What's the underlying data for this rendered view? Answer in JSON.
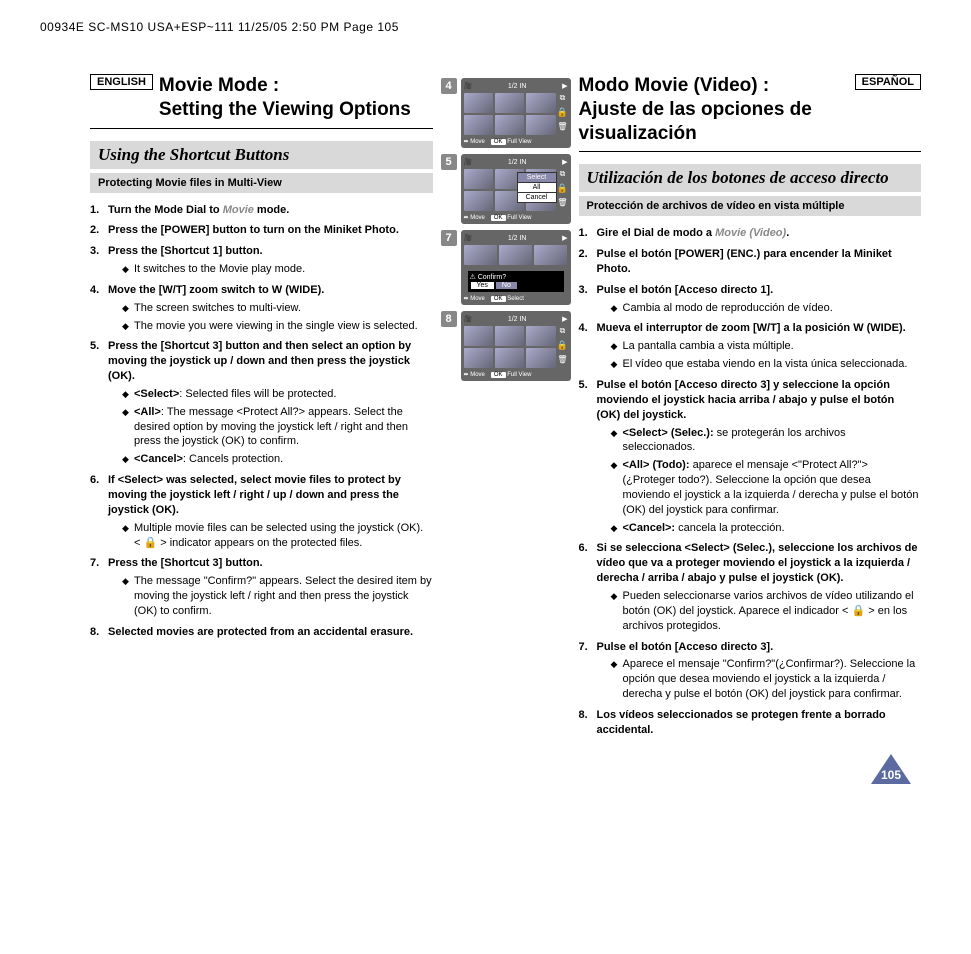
{
  "slug": "00934E SC-MS10 USA+ESP~111  11/25/05 2:50 PM  Page 105",
  "page_number": "105",
  "english": {
    "lang_tag": "ENGLISH",
    "title_line1": "Movie Mode :",
    "title_line2": "Setting the Viewing Options",
    "section": "Using the Shortcut Buttons",
    "subsection": "Protecting Movie files in Multi-View",
    "steps": [
      {
        "num": "1",
        "head": "Turn the Mode Dial to ",
        "mode": "Movie",
        "tail": " mode.",
        "subs": []
      },
      {
        "num": "2",
        "head": "Press the [POWER] button to turn on the Miniket Photo.",
        "subs": []
      },
      {
        "num": "3",
        "head": "Press the [Shortcut 1] button.",
        "subs": [
          {
            "text": "It switches to the Movie play mode."
          }
        ]
      },
      {
        "num": "4",
        "head": "Move the [W/T] zoom switch to W (WIDE).",
        "subs": [
          {
            "text": "The screen switches to multi-view."
          },
          {
            "text": "The movie you were viewing in the single view is selected."
          }
        ]
      },
      {
        "num": "5",
        "head": "Press the [Shortcut 3] button and then select an option by moving the joystick up / down and then press the joystick (OK).",
        "subs": [
          {
            "opt": "<Select>",
            "text": ": Selected files will be protected."
          },
          {
            "opt": "<All>",
            "text": ": The message <Protect All?> appears. Select the desired option by moving the joystick left / right and then press the joystick (OK) to confirm."
          },
          {
            "opt": "<Cancel>",
            "text": ": Cancels protection."
          }
        ]
      },
      {
        "num": "6",
        "head": "If <Select> was selected, select movie files to protect by moving the joystick left / right / up / down and press the joystick (OK).",
        "subs": [
          {
            "text": "Multiple movie files can be selected using the joystick (OK). < 🔒 > indicator appears on the protected files."
          }
        ]
      },
      {
        "num": "7",
        "head": "Press the [Shortcut 3] button.",
        "subs": [
          {
            "text": "The message \"Confirm?\" appears. Select the desired item by moving the joystick left / right and then press the joystick (OK) to confirm."
          }
        ]
      },
      {
        "num": "8",
        "head": "Selected movies are protected from an accidental erasure.",
        "subs": []
      }
    ]
  },
  "spanish": {
    "lang_tag": "ESPAÑOL",
    "title_line1": "Modo Movie (Video) :",
    "title_line2": "Ajuste de las opciones de visualización",
    "section": "Utilización de los botones de acceso directo",
    "subsection": "Protección de archivos de vídeo en vista múltiple",
    "steps": [
      {
        "num": "1",
        "head": "Gire el Dial de modo a ",
        "mode": "Movie (Video)",
        "tail": ".",
        "subs": []
      },
      {
        "num": "2",
        "head": "Pulse el botón [POWER] (ENC.) para encender la Miniket Photo.",
        "subs": []
      },
      {
        "num": "3",
        "head": "Pulse el botón [Acceso directo 1].",
        "subs": [
          {
            "text": "Cambia al modo de reproducción de vídeo."
          }
        ]
      },
      {
        "num": "4",
        "head": "Mueva el interruptor de zoom [W/T] a la posición W (WIDE).",
        "subs": [
          {
            "text": "La pantalla cambia a vista múltiple."
          },
          {
            "text": "El vídeo que estaba viendo en la vista única seleccionada."
          }
        ]
      },
      {
        "num": "5",
        "head": "Pulse el botón [Acceso directo 3] y seleccione la opción moviendo el joystick hacia arriba / abajo y pulse el botón (OK) del joystick.",
        "subs": [
          {
            "opt": "<Select> (Selec.):",
            "text": " se protegerán los archivos seleccionados."
          },
          {
            "opt": "<All> (Todo):",
            "text": " aparece el mensaje <\"Protect All?\"> (¿Proteger todo?). Seleccione la opción que desea moviendo el joystick a la izquierda / derecha y pulse el botón (OK) del joystick para confirmar."
          },
          {
            "opt": "<Cancel>:",
            "text": " cancela la protección."
          }
        ]
      },
      {
        "num": "6",
        "head": "Si se selecciona <Select> (Selec.), seleccione los archivos de vídeo que va a proteger moviendo el joystick a la izquierda / derecha / arriba / abajo y pulse el joystick (OK).",
        "subs": [
          {
            "text": "Pueden seleccionarse varios archivos de vídeo utilizando el botón (OK) del joystick. Aparece el indicador < 🔒 > en los archivos protegidos."
          }
        ]
      },
      {
        "num": "7",
        "head": "Pulse el botón [Acceso directo 3].",
        "subs": [
          {
            "text": "Aparece el mensaje \"Confirm?\"(¿Confirmar?). Seleccione la opción que desea moviendo el joystick a la izquierda / derecha y pulse el botón (OK) del joystick para confirmar."
          }
        ]
      },
      {
        "num": "8",
        "head": "Los vídeos seleccionados se protegen frente a borrado accidental.",
        "subs": []
      }
    ]
  },
  "screens": {
    "nums": [
      "4",
      "5",
      "7",
      "8"
    ],
    "bottombar_move": "Move",
    "bottombar_fullview": "Full View",
    "bottombar_select": "Select",
    "bottombar_ok": "OK",
    "menu": {
      "select": "Select",
      "all": "All",
      "cancel": "Cancel"
    },
    "confirm": {
      "title": "⚠ Confirm?",
      "yes": "Yes",
      "no": "No"
    },
    "topbar_in": "IN",
    "icons": {
      "camera": "🎥",
      "play": "▶",
      "copy": "⧉",
      "lock": "🔒",
      "trash": "🗑",
      "fraction": "1/2"
    }
  },
  "colors": {
    "section_bg": "#d9d9d9",
    "screen_bg": "#666666",
    "pagenum_bg": "#5b6aa0",
    "gray_text": "#888888"
  }
}
